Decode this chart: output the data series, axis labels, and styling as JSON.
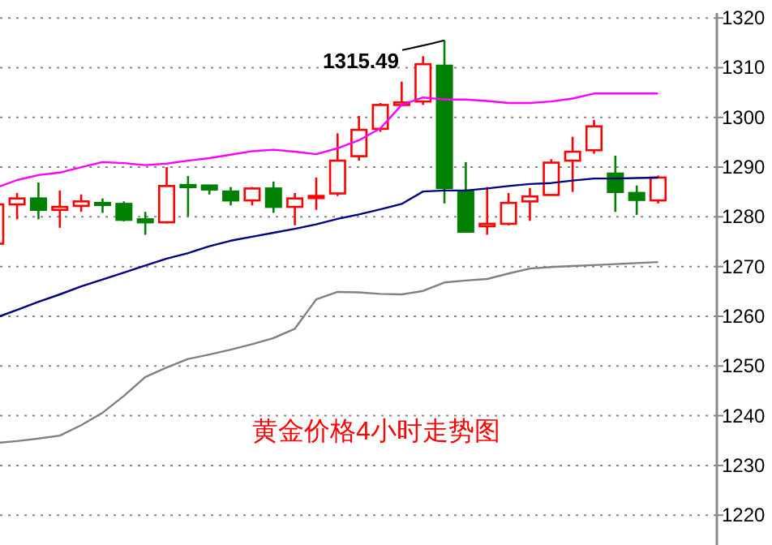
{
  "chart_data": {
    "type": "candlestick",
    "title": "黄金价格4小时走势图",
    "categories": [
      null,
      null,
      null,
      null,
      null,
      null,
      null,
      null,
      null,
      null,
      null,
      null,
      null,
      null,
      null,
      null,
      null,
      null,
      null,
      null,
      null,
      null,
      null,
      null,
      null,
      null,
      null,
      null,
      null,
      null,
      null,
      null
    ],
    "ohlc": [
      [
        1274.6,
        1282.5,
        1274.6,
        1282.5
      ],
      [
        1282.5,
        1284.8,
        1279.5,
        1283.7
      ],
      [
        1283.7,
        1286.9,
        1279.5,
        1281.4
      ],
      [
        1281.4,
        1285.3,
        1277.8,
        1282.0
      ],
      [
        1282.2,
        1284.5,
        1281.0,
        1283.1
      ],
      [
        1282.8,
        1283.7,
        1280.8,
        1282.6
      ],
      [
        1282.6,
        1283.1,
        1279.1,
        1279.4
      ],
      [
        1279.5,
        1281.0,
        1276.4,
        1278.9
      ],
      [
        1278.9,
        1290.0,
        1278.7,
        1286.2
      ],
      [
        1286.4,
        1288.2,
        1280.1,
        1286.2
      ],
      [
        1286.3,
        1286.3,
        1284.5,
        1285.5
      ],
      [
        1285.1,
        1286.0,
        1282.3,
        1283.3
      ],
      [
        1283.3,
        1286.0,
        1282.3,
        1285.7
      ],
      [
        1285.7,
        1287.1,
        1280.8,
        1282.0
      ],
      [
        1282.0,
        1284.8,
        1278.3,
        1283.7
      ],
      [
        1284.0,
        1287.9,
        1281.4,
        1284.2
      ],
      [
        1284.7,
        1296.8,
        1284.2,
        1291.3
      ],
      [
        1292.2,
        1300.3,
        1291.3,
        1297.5
      ],
      [
        1297.7,
        1302.9,
        1297.1,
        1302.5
      ],
      [
        1302.5,
        1307.2,
        1302.2,
        1303.0
      ],
      [
        1303.2,
        1312.3,
        1302.5,
        1310.7
      ],
      [
        1310.4,
        1315.49,
        1282.7,
        1285.8
      ],
      [
        1285.2,
        1291.0,
        1277.0,
        1277.0
      ],
      [
        1278.1,
        1286.0,
        1276.4,
        1278.6
      ],
      [
        1278.6,
        1284.8,
        1278.3,
        1282.8
      ],
      [
        1283.1,
        1285.8,
        1279.2,
        1284.1
      ],
      [
        1284.4,
        1291.6,
        1284.4,
        1290.9
      ],
      [
        1291.3,
        1296.1,
        1285.0,
        1293.1
      ],
      [
        1293.4,
        1299.5,
        1292.7,
        1298.2
      ],
      [
        1288.7,
        1292.3,
        1281.0,
        1285.0
      ],
      [
        1284.8,
        1286.3,
        1280.4,
        1283.4
      ],
      [
        1283.3,
        1288.3,
        1282.7,
        1287.9
      ]
    ],
    "colors": [
      "#ff0000",
      "#ff0000",
      "#008000",
      "#ff0000",
      "#ff0000",
      "#008000",
      "#008000",
      "#008000",
      "#ff0000",
      "#008000",
      "#008000",
      "#008000",
      "#ff0000",
      "#008000",
      "#ff0000",
      "#ff0000",
      "#ff0000",
      "#ff0000",
      "#ff0000",
      "#ff0000",
      "#ff0000",
      "#008000",
      "#008000",
      "#ff0000",
      "#ff0000",
      "#ff0000",
      "#ff0000",
      "#ff0000",
      "#ff0000",
      "#008000",
      "#008000",
      "#ff0000"
    ],
    "series": [
      {
        "type": "line",
        "color": "#ff00ff",
        "values": [
          1285.8,
          1287.4,
          1288.4,
          1288.9,
          1290.0,
          1291.0,
          1290.8,
          1290.4,
          1290.7,
          1291.3,
          1291.8,
          1292.5,
          1293.2,
          1293.5,
          1293.1,
          1292.6,
          1293.8,
          1295.4,
          1297.8,
          1302.5,
          1304.0,
          1303.6,
          1303.6,
          1303.3,
          1302.9,
          1302.9,
          1303.2,
          1303.8,
          1304.8,
          1304.8,
          1304.8,
          1304.8
        ]
      },
      {
        "type": "line",
        "color": "#000080",
        "values": [
          1259.7,
          1261.3,
          1262.9,
          1264.4,
          1266.0,
          1267.4,
          1268.8,
          1270.2,
          1271.6,
          1272.7,
          1274.1,
          1275.2,
          1276.0,
          1276.8,
          1277.6,
          1278.5,
          1279.6,
          1280.5,
          1281.5,
          1282.6,
          1285.1,
          1285.3,
          1285.3,
          1285.7,
          1286.2,
          1286.6,
          1286.8,
          1287.3,
          1287.7,
          1287.7,
          1287.8,
          1287.9
        ]
      },
      {
        "type": "line",
        "color": "#808080",
        "values": [
          1234.5,
          1234.9,
          1235.4,
          1236.0,
          1238.1,
          1240.6,
          1244.0,
          1247.8,
          1249.7,
          1251.4,
          1252.3,
          1253.3,
          1254.4,
          1255.6,
          1257.5,
          1263.4,
          1264.9,
          1264.8,
          1264.5,
          1264.4,
          1265.1,
          1266.8,
          1267.2,
          1267.5,
          1268.6,
          1269.6,
          1269.9,
          1270.1,
          1270.3,
          1270.5,
          1270.7,
          1270.9
        ]
      }
    ],
    "annotations": [
      "1315.49"
    ],
    "ylim": [
      1214,
      1321
    ],
    "yticks": [
      1220,
      1230,
      1240,
      1250,
      1260,
      1270,
      1280,
      1290,
      1300,
      1310,
      1320
    ],
    "grid": "y",
    "tick_labels": "y"
  }
}
